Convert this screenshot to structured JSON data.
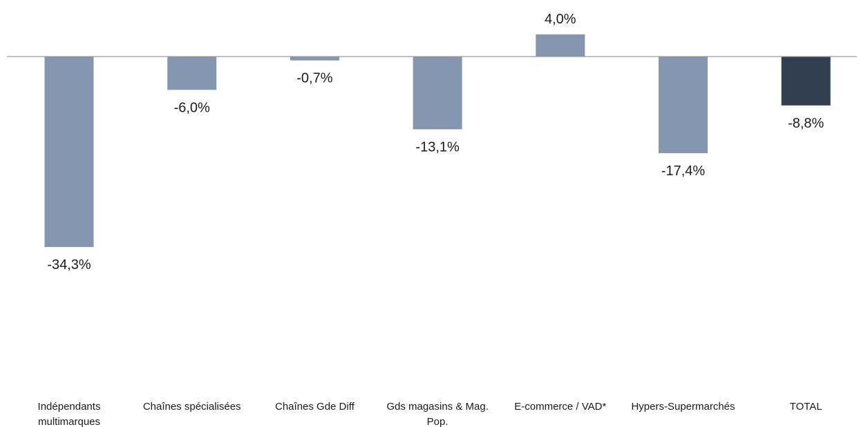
{
  "chart_data": {
    "type": "bar",
    "categories": [
      [
        "Indépendants",
        "multimarques"
      ],
      [
        "Chaînes spécialisées"
      ],
      [
        "Chaînes Gde Diff"
      ],
      [
        "Gds magasins & Mag.",
        "Pop."
      ],
      [
        "E-commerce / VAD*"
      ],
      [
        "Hypers-Supermarchés"
      ],
      [
        "TOTAL"
      ]
    ],
    "values": [
      -34.3,
      -6.0,
      -0.7,
      -13.1,
      4.0,
      -17.4,
      -8.8
    ],
    "value_labels": [
      "-34,3%",
      "-6,0%",
      "-0,7%",
      "-13,1%",
      "4,0%",
      "-17,4%",
      "-8,8%"
    ],
    "highlight_index": 6,
    "colors": {
      "bar": "#8597b0",
      "highlight": "#323e51",
      "axis": "#9a9a9a"
    },
    "title": "",
    "xlabel": "",
    "ylabel": "",
    "grid": false,
    "legend": "none"
  }
}
